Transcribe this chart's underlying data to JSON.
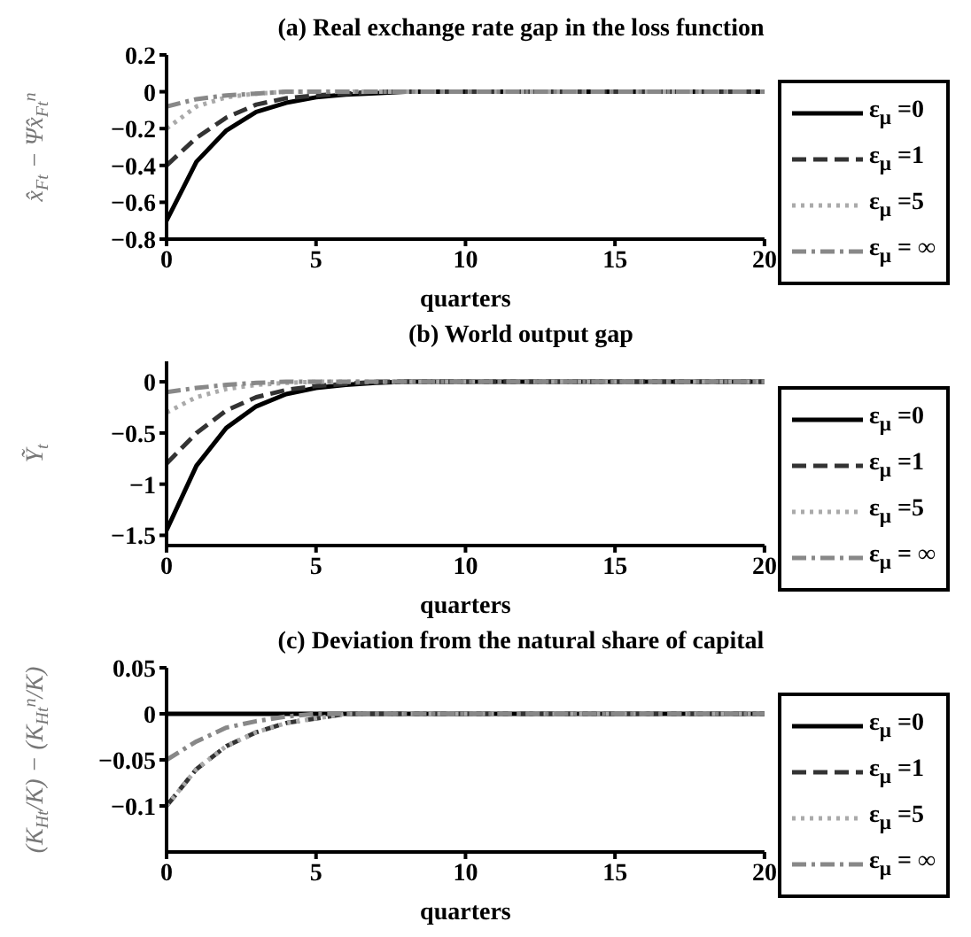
{
  "chart_data": [
    {
      "type": "line",
      "title": "(a) Real exchange rate gap in the loss function",
      "xlabel": "quarters",
      "ylabel": "x̂$_{Ft}$ − Ψx̂$_{Ft}$$^{n}$",
      "x": [
        0,
        1,
        2,
        3,
        4,
        5,
        6,
        7,
        8,
        9,
        10,
        11,
        12,
        13,
        14,
        15,
        16,
        17,
        18,
        19,
        20
      ],
      "xlim": [
        0,
        20
      ],
      "xticks": [
        0,
        5,
        10,
        15,
        20
      ],
      "ylim": [
        -0.8,
        0.2
      ],
      "yticks": [
        -0.8,
        -0.6,
        -0.4,
        -0.2,
        0,
        0.2
      ],
      "legend": "right",
      "series": [
        {
          "name": "ε$_{μ}$ =0",
          "color": "#000000",
          "line_style": "solid",
          "values": [
            -0.7,
            -0.38,
            -0.21,
            -0.11,
            -0.06,
            -0.03,
            -0.015,
            -0.008,
            0,
            0,
            0,
            0,
            0,
            0,
            0,
            0,
            0,
            0,
            0,
            0,
            0
          ]
        },
        {
          "name": "ε$_{μ}$ =1",
          "color": "#333333",
          "line_style": "dashed",
          "values": [
            -0.4,
            -0.25,
            -0.14,
            -0.07,
            -0.035,
            -0.02,
            -0.01,
            0,
            0,
            0,
            0,
            0,
            0,
            0,
            0,
            0,
            0,
            0,
            0,
            0,
            0
          ]
        },
        {
          "name": "ε$_{μ}$ =5",
          "color": "#aaaaaa",
          "line_style": "dotted",
          "values": [
            -0.2,
            -0.08,
            -0.03,
            -0.01,
            0,
            0,
            0,
            0,
            0,
            0,
            0,
            0,
            0,
            0,
            0,
            0,
            0,
            0,
            0,
            0,
            0
          ]
        },
        {
          "name": "ε$_{μ}$ = ∞",
          "color": "#888888",
          "line_style": "dashdot",
          "values": [
            -0.08,
            -0.04,
            -0.02,
            -0.01,
            0,
            0,
            0,
            0,
            0,
            0,
            0,
            0,
            0,
            0,
            0,
            0,
            0,
            0,
            0,
            0,
            0
          ]
        }
      ]
    },
    {
      "type": "line",
      "title": "(b) World output gap",
      "xlabel": "quarters",
      "ylabel": "Ỹ$_{t}$",
      "x": [
        0,
        1,
        2,
        3,
        4,
        5,
        6,
        7,
        8,
        9,
        10,
        11,
        12,
        13,
        14,
        15,
        16,
        17,
        18,
        19,
        20
      ],
      "xlim": [
        0,
        20
      ],
      "xticks": [
        0,
        5,
        10,
        15,
        20
      ],
      "ylim": [
        -1.6,
        0.2
      ],
      "yticks": [
        -1.5,
        -1,
        -0.5,
        0
      ],
      "legend": "right",
      "series": [
        {
          "name": "ε$_{μ}$ =0",
          "color": "#000000",
          "line_style": "solid",
          "values": [
            -1.45,
            -0.82,
            -0.45,
            -0.24,
            -0.12,
            -0.06,
            -0.03,
            -0.01,
            0,
            0,
            0,
            0,
            0,
            0,
            0,
            0,
            0,
            0,
            0,
            0,
            0
          ]
        },
        {
          "name": "ε$_{μ}$ =1",
          "color": "#333333",
          "line_style": "dashed",
          "values": [
            -0.8,
            -0.5,
            -0.28,
            -0.15,
            -0.08,
            -0.04,
            -0.02,
            0,
            0,
            0,
            0,
            0,
            0,
            0,
            0,
            0,
            0,
            0,
            0,
            0,
            0
          ]
        },
        {
          "name": "ε$_{μ}$ =5",
          "color": "#aaaaaa",
          "line_style": "dotted",
          "values": [
            -0.3,
            -0.15,
            -0.07,
            -0.03,
            -0.01,
            0,
            0,
            0,
            0,
            0,
            0,
            0,
            0,
            0,
            0,
            0,
            0,
            0,
            0,
            0,
            0
          ]
        },
        {
          "name": "ε$_{μ}$ = ∞",
          "color": "#888888",
          "line_style": "dashdot",
          "values": [
            -0.1,
            -0.06,
            -0.03,
            -0.01,
            0,
            0,
            0,
            0,
            0,
            0,
            0,
            0,
            0,
            0,
            0,
            0,
            0,
            0,
            0,
            0,
            0
          ]
        }
      ]
    },
    {
      "type": "line",
      "title": "(c) Deviation from the natural share of capital",
      "xlabel": "quarters",
      "ylabel": "(K$_{Ht}$/K) − (K$_{Ht}$$^{n}$/K)",
      "x": [
        0,
        1,
        2,
        3,
        4,
        5,
        6,
        7,
        8,
        9,
        10,
        11,
        12,
        13,
        14,
        15,
        16,
        17,
        18,
        19,
        20
      ],
      "xlim": [
        0,
        20
      ],
      "xticks": [
        0,
        5,
        10,
        15,
        20
      ],
      "ylim": [
        -0.15,
        0.05
      ],
      "yticks": [
        -0.1,
        -0.05,
        0,
        0.05
      ],
      "legend": "right",
      "series": [
        {
          "name": "ε$_{μ}$ =0",
          "color": "#000000",
          "line_style": "solid",
          "values": [
            0,
            0,
            0,
            0,
            0,
            0,
            0,
            0,
            0,
            0,
            0,
            0,
            0,
            0,
            0,
            0,
            0,
            0,
            0,
            0,
            0
          ]
        },
        {
          "name": "ε$_{μ}$ =1",
          "color": "#333333",
          "line_style": "dashed",
          "values": [
            -0.1,
            -0.06,
            -0.035,
            -0.02,
            -0.01,
            -0.005,
            0,
            0,
            0,
            0,
            0,
            0,
            0,
            0,
            0,
            0,
            0,
            0,
            0,
            0,
            0
          ]
        },
        {
          "name": "ε$_{μ}$ =5",
          "color": "#aaaaaa",
          "line_style": "dotted",
          "values": [
            -0.1,
            -0.06,
            -0.035,
            -0.02,
            -0.01,
            -0.005,
            0,
            0,
            0,
            0,
            0,
            0,
            0,
            0,
            0,
            0,
            0,
            0,
            0,
            0,
            0
          ]
        },
        {
          "name": "ε$_{μ}$ = ∞",
          "color": "#888888",
          "line_style": "dashdot",
          "values": [
            -0.05,
            -0.03,
            -0.015,
            -0.008,
            -0.003,
            0,
            0,
            0,
            0,
            0,
            0,
            0,
            0,
            0,
            0,
            0,
            0,
            0,
            0,
            0,
            0
          ]
        }
      ]
    }
  ]
}
